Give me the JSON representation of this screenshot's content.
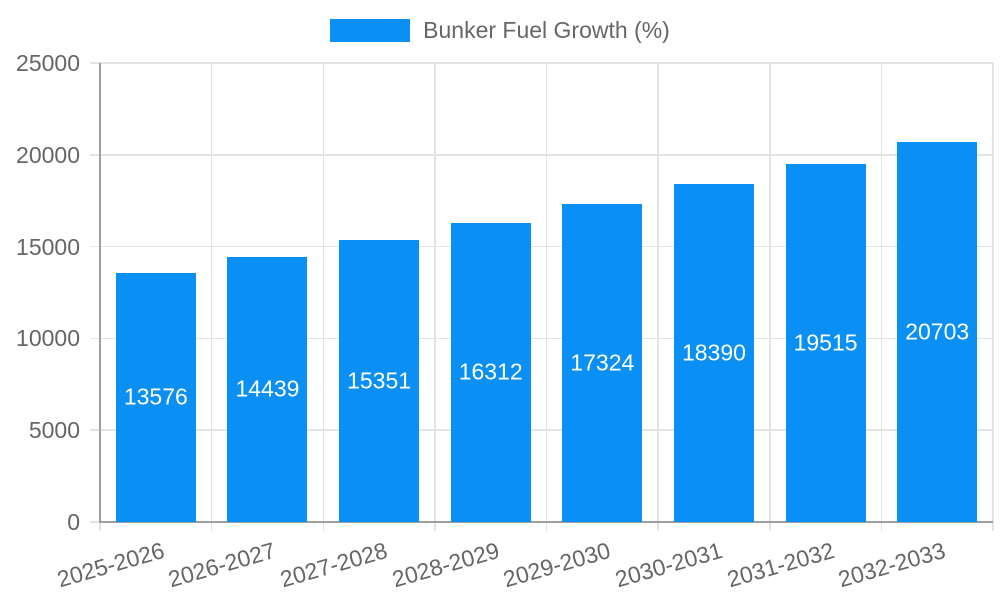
{
  "legend": {
    "label": "Bunker Fuel Growth (%)"
  },
  "chart_data": {
    "type": "bar",
    "title": "",
    "series_name": "Bunker Fuel Growth (%)",
    "categories": [
      "2025-2026",
      "2026-2027",
      "2027-2028",
      "2028-2029",
      "2029-2030",
      "2030-2031",
      "2031-2032",
      "2032-2033"
    ],
    "values": [
      13576,
      14439,
      15351,
      16312,
      17324,
      18390,
      19515,
      20703
    ],
    "ylim": [
      0,
      25000
    ],
    "yticks": [
      0,
      5000,
      10000,
      15000,
      20000,
      25000
    ],
    "grid": true,
    "legend_position": "top",
    "value_labels": "inside-center",
    "x_tick_rotation_deg": -16
  },
  "colors": {
    "bar": "#0a8ff5",
    "grid": "#e3e3e3",
    "axis": "#9e9e9e",
    "tick_label": "#666666",
    "value_label": "#ffffff",
    "legend_label": "#666666"
  }
}
